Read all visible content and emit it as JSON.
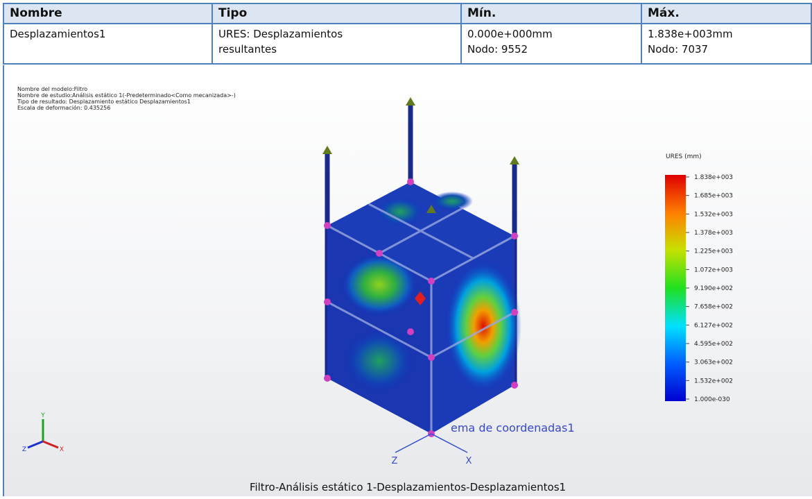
{
  "table": {
    "headers": [
      "Nombre",
      "Tipo",
      "Mín.",
      "Máx."
    ],
    "rows": [
      [
        {
          "lines": [
            "Desplazamientos1"
          ]
        },
        {
          "lines": [
            "URES:  Desplazamientos",
            "resultantes"
          ]
        },
        {
          "lines": [
            "0.000e+000mm",
            "Nodo: 9552"
          ]
        },
        {
          "lines": [
            "1.838e+003mm",
            "Nodo: 7037"
          ]
        }
      ]
    ]
  },
  "view": {
    "info": [
      "Nombre del modelo:Filtro",
      "Nombre de estudio:Análisis estático 1(-Predeterminado<Como mecanizada>-)",
      "Tipo de resultado: Desplazamiento estático Desplazamientos1",
      "Escala de deformación: 0.435256"
    ],
    "legend": {
      "title": "URES (mm)",
      "labels": [
        "1.838e+003",
        "1.685e+003",
        "1.532e+003",
        "1.378e+003",
        "1.225e+003",
        "1.072e+003",
        "9.190e+002",
        "7.658e+002",
        "6.127e+002",
        "4.595e+002",
        "3.063e+002",
        "1.532e+002",
        "1.000e-030"
      ]
    },
    "coord_label": "ema de coordenadas1",
    "coord_axes": [
      "Z",
      "X"
    ],
    "triad_axes": [
      "Y",
      "Z",
      "X"
    ],
    "caption": "Filtro-Análisis estático 1-Desplazamientos-Desplazamientos1"
  }
}
